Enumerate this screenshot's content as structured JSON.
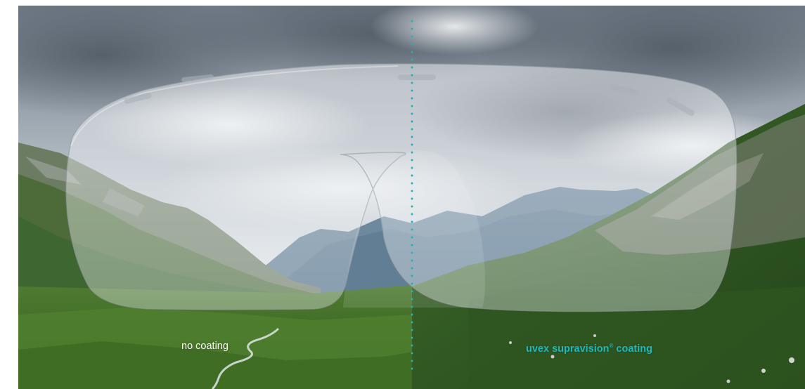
{
  "captions": {
    "left": "no coating",
    "right_brand": "uvex supravision",
    "right_registered": "®",
    "right_suffix": " coating"
  },
  "colors": {
    "accent_teal": "#22b7b9",
    "left_caption": "#ffffff",
    "divider": "#1fb3b6"
  },
  "icons": {
    "divider": "dotted-vertical-line",
    "lens": "safety-glasses-lens"
  }
}
